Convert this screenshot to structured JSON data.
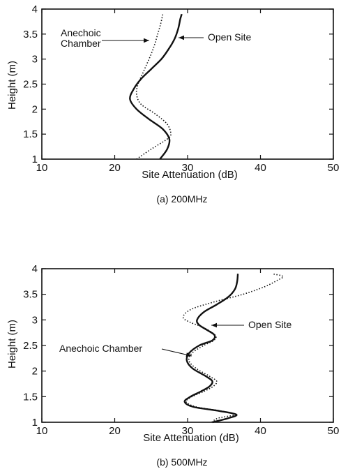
{
  "chart_data": [
    {
      "type": "line",
      "caption": "(a) 200MHz",
      "xlabel": "Site Attenuation (dB)",
      "ylabel": "Height (m)",
      "xlim": [
        10,
        50
      ],
      "ylim": [
        1,
        4
      ],
      "xticks": [
        10,
        20,
        30,
        40,
        50
      ],
      "yticks": [
        1,
        1.5,
        2,
        2.5,
        3,
        3.5,
        4
      ],
      "legend": "none",
      "grid": false,
      "annotations": [
        {
          "text": "Anechoic Chamber",
          "lines": [
            "Anechoic",
            "Chamber"
          ],
          "target": "Anechoic Chamber"
        },
        {
          "text": "Open Site",
          "lines": [
            "Open Site"
          ],
          "target": "Open Site"
        }
      ],
      "series": [
        {
          "label": "Open Site",
          "style": "solid",
          "points": [
            [
              26.2,
              1.0
            ],
            [
              27.2,
              1.2
            ],
            [
              27.5,
              1.4
            ],
            [
              26.6,
              1.6
            ],
            [
              24.7,
              1.8
            ],
            [
              23.0,
              2.0
            ],
            [
              22.1,
              2.2
            ],
            [
              22.6,
              2.4
            ],
            [
              23.6,
              2.6
            ],
            [
              25.0,
              2.8
            ],
            [
              26.4,
              3.0
            ],
            [
              27.4,
              3.2
            ],
            [
              28.2,
              3.4
            ],
            [
              28.7,
              3.6
            ],
            [
              29.0,
              3.8
            ],
            [
              29.2,
              3.9
            ]
          ]
        },
        {
          "label": "Anechoic Chamber",
          "style": "dotted",
          "points": [
            [
              23.0,
              1.0
            ],
            [
              25.0,
              1.2
            ],
            [
              27.2,
              1.4
            ],
            [
              27.7,
              1.5
            ],
            [
              27.2,
              1.7
            ],
            [
              25.6,
              1.9
            ],
            [
              23.6,
              2.1
            ],
            [
              23.0,
              2.3
            ],
            [
              23.2,
              2.5
            ],
            [
              23.8,
              2.7
            ],
            [
              24.4,
              2.9
            ],
            [
              25.0,
              3.1
            ],
            [
              25.5,
              3.3
            ],
            [
              25.9,
              3.5
            ],
            [
              26.3,
              3.7
            ],
            [
              26.6,
              3.9
            ]
          ]
        }
      ]
    },
    {
      "type": "line",
      "caption": "(b) 500MHz",
      "xlabel": "Site Attenuation (dB)",
      "ylabel": "Height (m)",
      "xlim": [
        10,
        50
      ],
      "ylim": [
        1,
        4
      ],
      "xticks": [
        10,
        20,
        30,
        40,
        50
      ],
      "yticks": [
        1,
        1.5,
        2,
        2.5,
        3,
        3.5,
        4
      ],
      "legend": "none",
      "grid": false,
      "annotations": [
        {
          "text": "Anechoic Chamber",
          "lines": [
            "Anechoic Chamber"
          ],
          "target": "Anechoic Chamber"
        },
        {
          "text": "Open Site",
          "lines": [
            "Open Site"
          ],
          "target": "Open Site"
        }
      ],
      "series": [
        {
          "label": "Open Site",
          "style": "solid",
          "points": [
            [
              33.4,
              1.0
            ],
            [
              35.6,
              1.08
            ],
            [
              36.7,
              1.15
            ],
            [
              34.4,
              1.22
            ],
            [
              30.8,
              1.3
            ],
            [
              29.6,
              1.4
            ],
            [
              30.4,
              1.5
            ],
            [
              31.8,
              1.6
            ],
            [
              33.0,
              1.7
            ],
            [
              33.4,
              1.8
            ],
            [
              32.5,
              1.9
            ],
            [
              30.7,
              2.05
            ],
            [
              29.9,
              2.2
            ],
            [
              30.2,
              2.35
            ],
            [
              31.6,
              2.5
            ],
            [
              33.4,
              2.6
            ],
            [
              33.7,
              2.7
            ],
            [
              32.7,
              2.8
            ],
            [
              31.6,
              2.9
            ],
            [
              31.3,
              3.0
            ],
            [
              32.2,
              3.15
            ],
            [
              34.0,
              3.3
            ],
            [
              35.6,
              3.45
            ],
            [
              36.5,
              3.6
            ],
            [
              36.8,
              3.75
            ],
            [
              36.9,
              3.9
            ]
          ]
        },
        {
          "label": "Anechoic Chamber",
          "style": "dotted",
          "points": [
            [
              33.3,
              1.0
            ],
            [
              34.2,
              1.08
            ],
            [
              36.5,
              1.15
            ],
            [
              34.6,
              1.22
            ],
            [
              31.2,
              1.3
            ],
            [
              29.8,
              1.4
            ],
            [
              30.6,
              1.5
            ],
            [
              32.2,
              1.6
            ],
            [
              33.5,
              1.7
            ],
            [
              34.0,
              1.8
            ],
            [
              33.0,
              1.9
            ],
            [
              31.2,
              2.05
            ],
            [
              30.2,
              2.2
            ],
            [
              30.6,
              2.35
            ],
            [
              32.2,
              2.5
            ],
            [
              33.6,
              2.6
            ],
            [
              33.8,
              2.7
            ],
            [
              32.2,
              2.85
            ],
            [
              30.4,
              2.95
            ],
            [
              29.4,
              3.05
            ],
            [
              30.4,
              3.2
            ],
            [
              33.6,
              3.35
            ],
            [
              37.6,
              3.5
            ],
            [
              40.6,
              3.65
            ],
            [
              42.4,
              3.78
            ],
            [
              43.1,
              3.85
            ],
            [
              41.6,
              3.9
            ]
          ]
        }
      ]
    }
  ]
}
